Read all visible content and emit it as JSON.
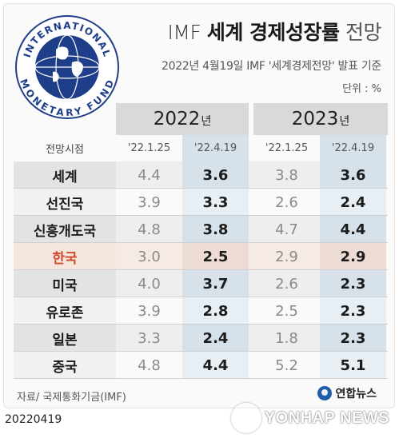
{
  "logo": {
    "ring_text_top": "INTERNATIONAL",
    "ring_text_bottom": "MONETARY FUND",
    "color": "#1f3e8a"
  },
  "title": {
    "prefix": "IMF ",
    "main": "세계 경제성장률",
    "suffix": " 전망"
  },
  "subtitle": "2022년 4월19일 IMF '세계경제전망' 발표 기준",
  "unit": "단위 : %",
  "years": [
    {
      "label": "2022",
      "suffix": "년"
    },
    {
      "label": "2023",
      "suffix": "년"
    }
  ],
  "columns_header": {
    "label": "전망시점",
    "y22_jan": "'22.1.25",
    "y22_apr": "'22.4.19",
    "y23_jan": "'22.1.25",
    "y23_apr": "'22.4.19"
  },
  "rows": [
    {
      "name": "세계",
      "y22_jan": "4.4",
      "y22_apr": "3.6",
      "y23_jan": "3.8",
      "y23_apr": "3.6"
    },
    {
      "name": "선진국",
      "y22_jan": "3.9",
      "y22_apr": "3.3",
      "y23_jan": "2.6",
      "y23_apr": "2.4"
    },
    {
      "name": "신흥개도국",
      "y22_jan": "4.8",
      "y22_apr": "3.8",
      "y23_jan": "4.7",
      "y23_apr": "4.4"
    },
    {
      "name": "한국",
      "y22_jan": "3.0",
      "y22_apr": "2.5",
      "y23_jan": "2.9",
      "y23_apr": "2.9"
    },
    {
      "name": "미국",
      "y22_jan": "4.0",
      "y22_apr": "3.7",
      "y23_jan": "2.6",
      "y23_apr": "2.3"
    },
    {
      "name": "유로존",
      "y22_jan": "3.9",
      "y22_apr": "2.8",
      "y23_jan": "2.5",
      "y23_apr": "2.3"
    },
    {
      "name": "일본",
      "y22_jan": "3.3",
      "y22_apr": "2.4",
      "y23_jan": "1.8",
      "y23_apr": "2.3"
    },
    {
      "name": "중국",
      "y22_jan": "4.8",
      "y22_apr": "4.4",
      "y23_jan": "5.2",
      "y23_apr": "5.1"
    }
  ],
  "highlight_color": "#d24a2f",
  "source": "자료/ 국제통화기금(IMF)",
  "brand": "연합뉴스",
  "date": "20220419",
  "watermark": "YONHAP NEWS"
}
